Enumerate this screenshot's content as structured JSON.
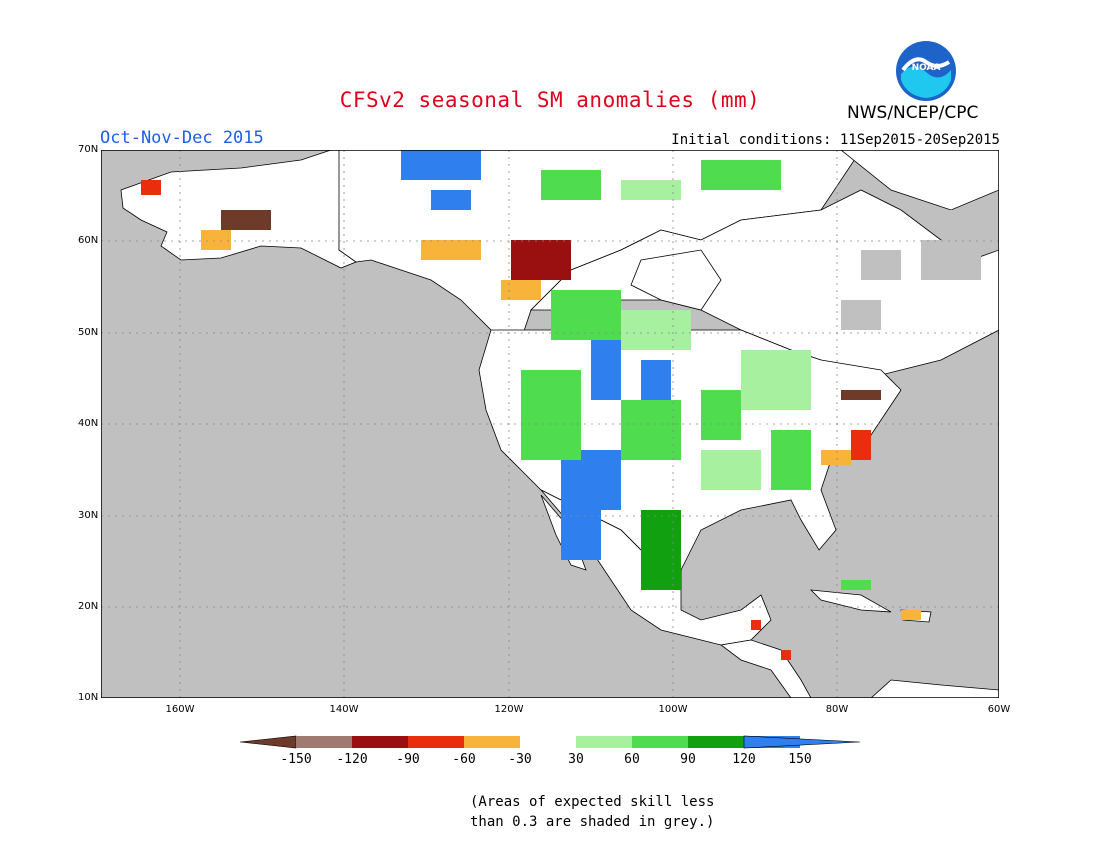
{
  "title": "CFSv2 seasonal SM anomalies (mm)",
  "season": "Oct-Nov-Dec 2015",
  "initial_conditions": "Initial conditions: 11Sep2015-20Sep2015",
  "agency": "NWS/NCEP/CPC",
  "logo_text": "NOAA",
  "lat_labels": [
    "70N",
    "60N",
    "50N",
    "40N",
    "30N",
    "20N",
    "10N"
  ],
  "lon_labels": [
    "160W",
    "140W",
    "120W",
    "100W",
    "80W",
    "60W"
  ],
  "legend": {
    "labels": [
      "-150",
      "-120",
      "-90",
      "-60",
      "-30",
      "30",
      "60",
      "90",
      "120",
      "150"
    ],
    "colors": [
      "#6e3a2a",
      "#a07a70",
      "#9a0f10",
      "#e82e0c",
      "#f8b43a",
      "#ffffff",
      "#a6f0a0",
      "#4fdc4f",
      "#10a010",
      "#2f80ee"
    ]
  },
  "colors": {
    "land": "#ffffff",
    "ocean": "#c0c0c0",
    "grey_skill": "#c0c0c0"
  },
  "note_line1": "(Areas of expected skill less",
  "note_line2": "than 0.3 are shaded in grey.)"
}
